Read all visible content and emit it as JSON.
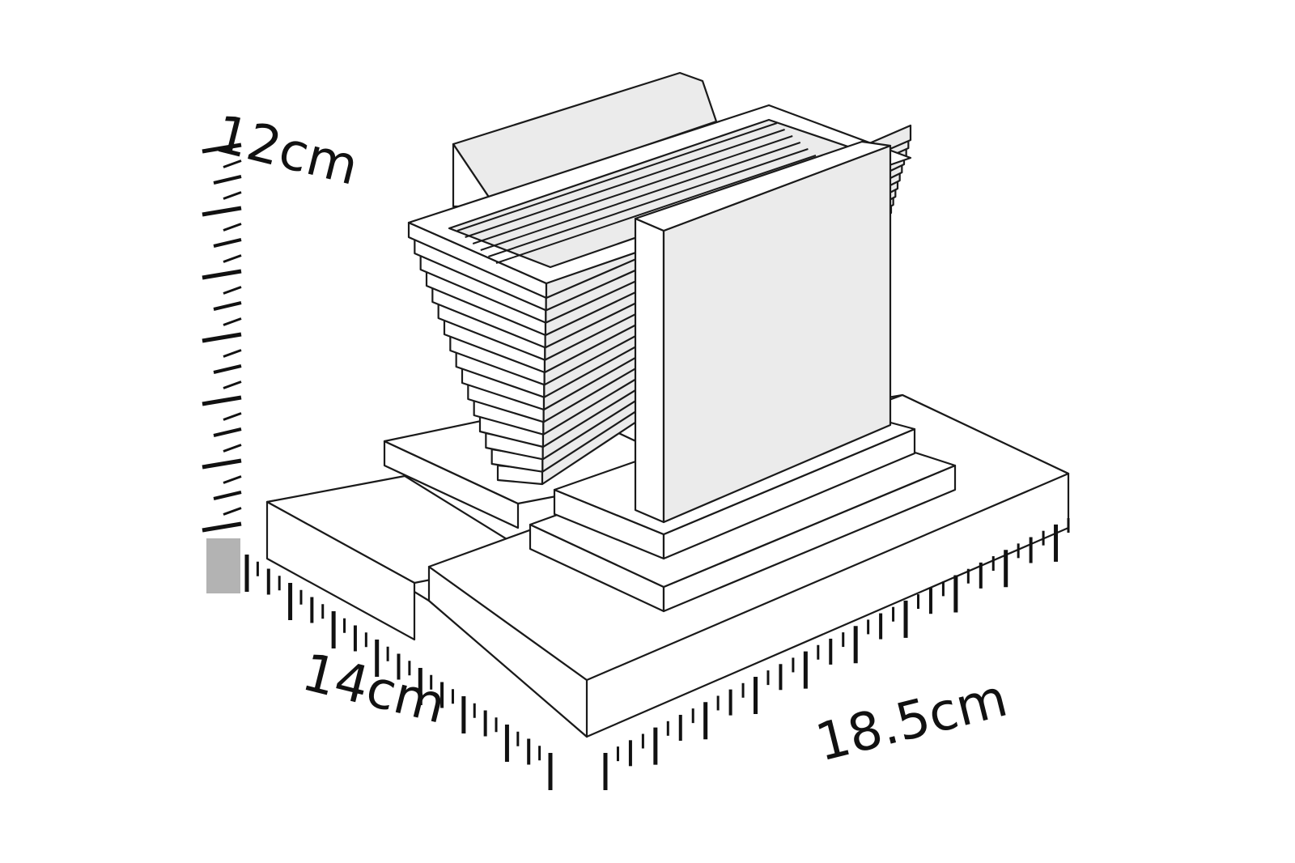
{
  "diagram": {
    "dimensions": {
      "height": {
        "label": "12cm",
        "value": 12,
        "unit": "cm"
      },
      "depth": {
        "label": "14cm",
        "value": 14,
        "unit": "cm"
      },
      "width": {
        "label": "18.5cm",
        "value": 18.5,
        "unit": "cm"
      }
    },
    "colors": {
      "line": "#1a1a1a",
      "face": "#ebebeb",
      "ruler_marker": "#b3b3b3"
    }
  }
}
